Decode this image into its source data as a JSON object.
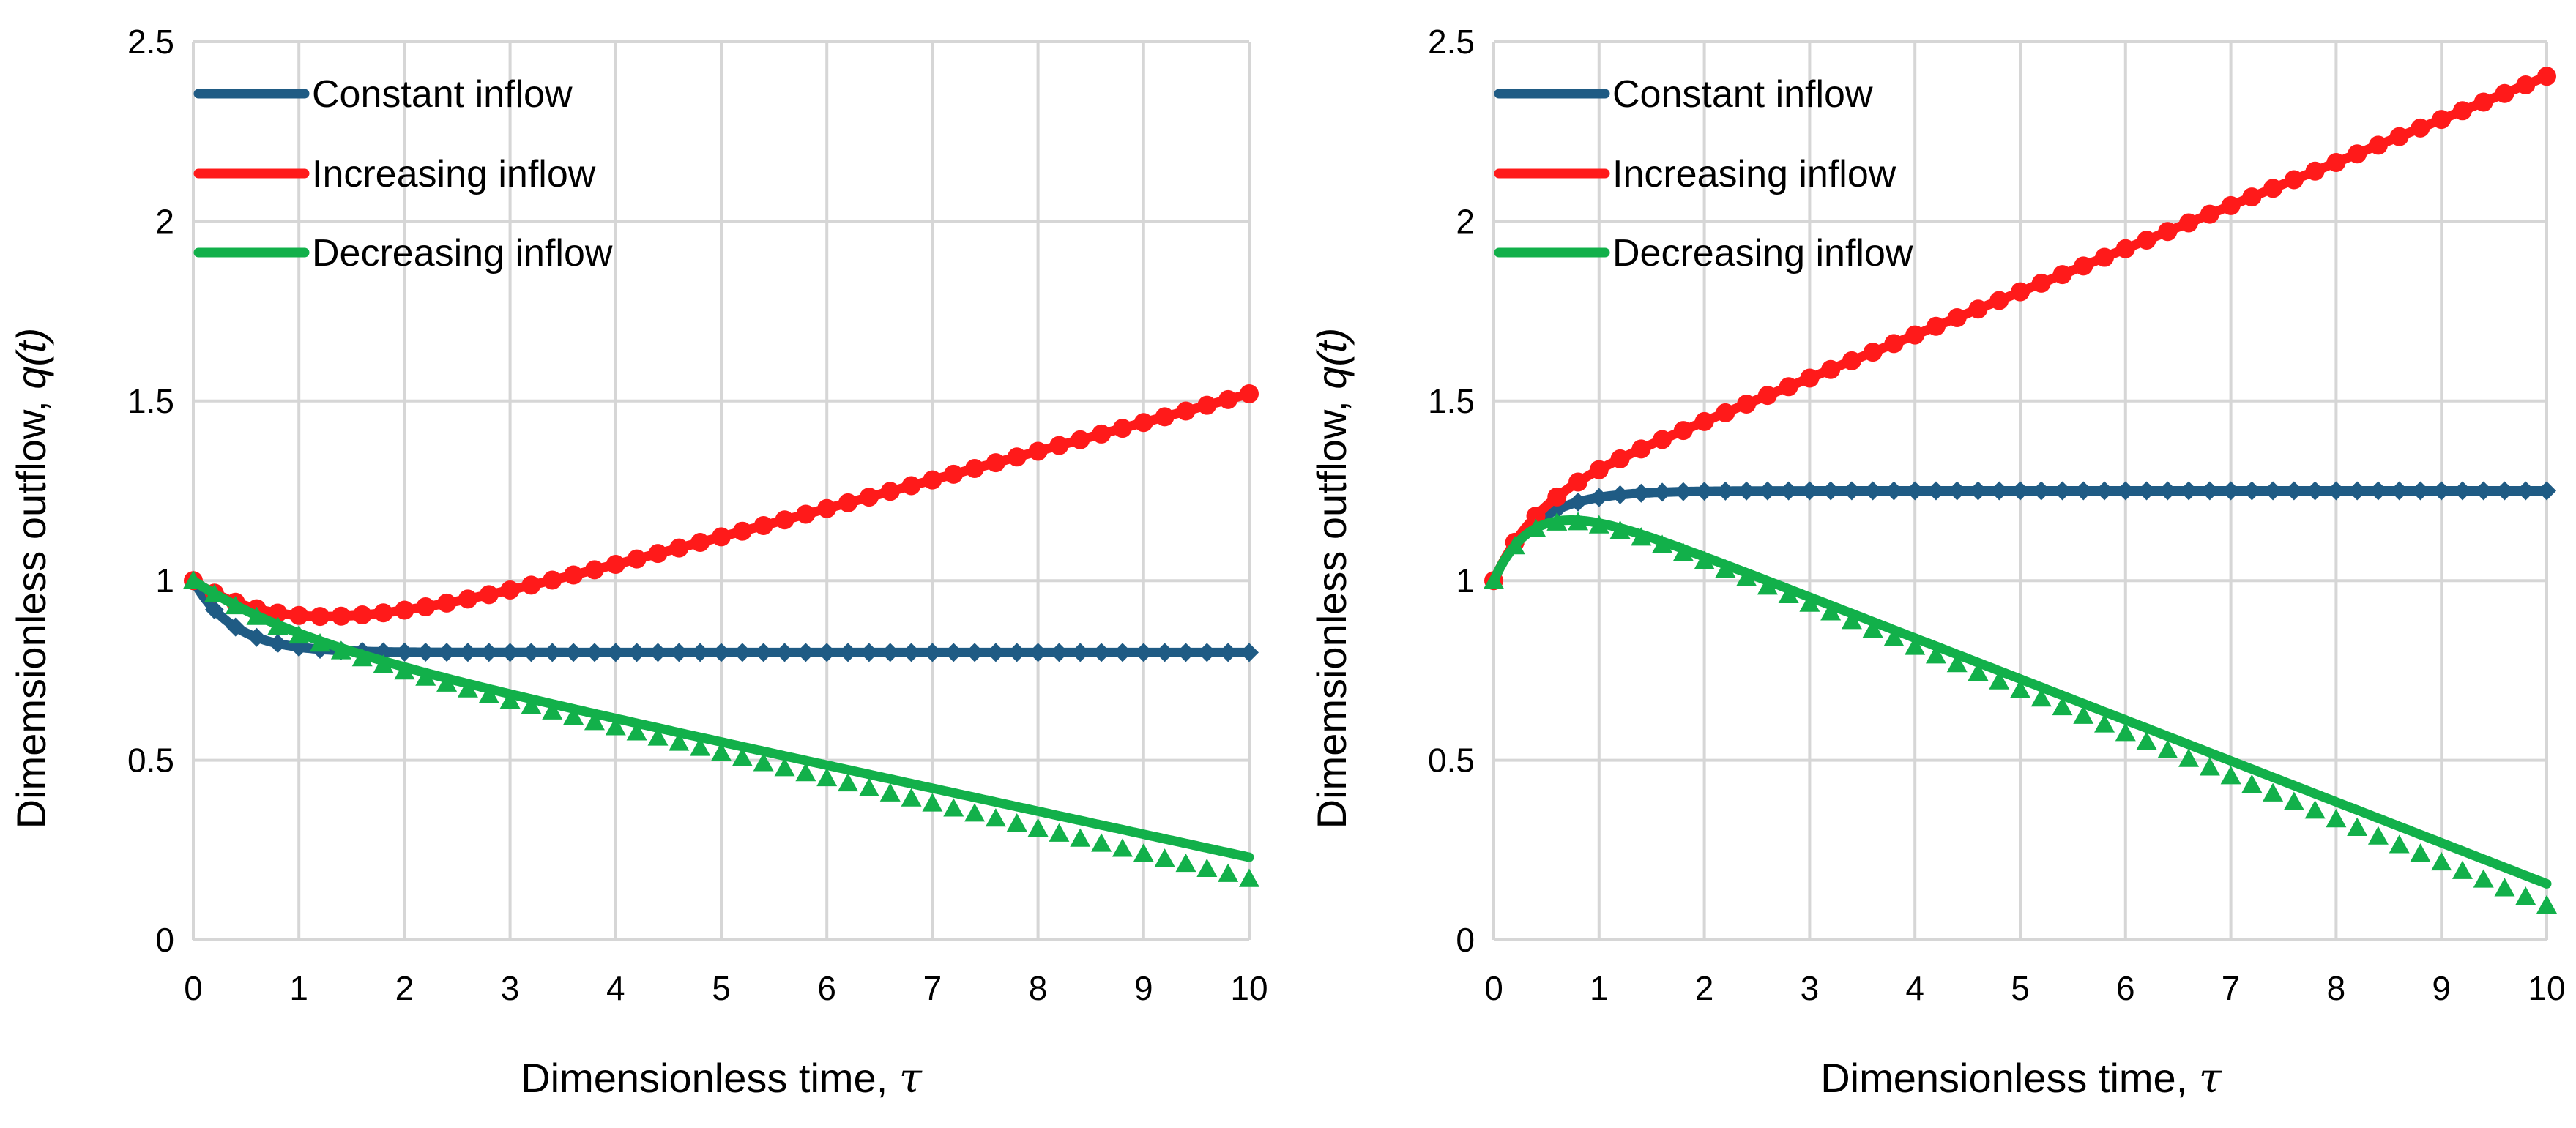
{
  "figure": {
    "panel_count": 2
  },
  "chart_data": [
    {
      "type": "line",
      "panel": "left",
      "title": "",
      "xlabel": "Dimensionless time, ",
      "xlabel_symbol": "τ",
      "ylabel": "Dimemsionless outflow, ",
      "ylabel_symbol": "q(t)",
      "xlim": [
        0,
        10
      ],
      "ylim": [
        0,
        2.5
      ],
      "xticks": [
        0,
        1,
        2,
        3,
        4,
        5,
        6,
        7,
        8,
        9,
        10
      ],
      "yticks": [
        0,
        0.5,
        1,
        1.5,
        2,
        2.5
      ],
      "ytick_labels": [
        "0",
        "0.5",
        "1",
        "1.5",
        "2",
        "2.5"
      ],
      "grid": true,
      "legend_position": "top-left",
      "marker_spacing": 0.2,
      "series": [
        {
          "name": "Constant inflow",
          "color": "#1f5b84",
          "marker": "diamond",
          "model": "constant",
          "params": {
            "q0": 1.0,
            "qinf": 0.8,
            "k": 2.6
          }
        },
        {
          "name": "Increasing inflow",
          "color": "#ff1a1a",
          "marker": "circle",
          "model": "ramp",
          "params": {
            "q0": 1.0,
            "a": 0.8,
            "b": 0.08,
            "k": 1.0,
            "line_shift": 0
          }
        },
        {
          "name": "Decreasing inflow",
          "color": "#12b04a",
          "marker": "triangle",
          "model": "ramp",
          "params": {
            "q0": 1.0,
            "a": 0.8,
            "b": -0.07,
            "k": 1.0,
            "line_shift": 0.06
          }
        }
      ]
    },
    {
      "type": "line",
      "panel": "right",
      "title": "",
      "xlabel": "Dimensionless time, ",
      "xlabel_symbol": "τ",
      "ylabel": "Dimemsionless outflow, ",
      "ylabel_symbol": "q(t)",
      "xlim": [
        0,
        10
      ],
      "ylim": [
        0,
        2.5
      ],
      "xticks": [
        0,
        1,
        2,
        3,
        4,
        5,
        6,
        7,
        8,
        9,
        10
      ],
      "yticks": [
        0,
        0.5,
        1,
        1.5,
        2,
        2.5
      ],
      "ytick_labels": [
        "0",
        "0.5",
        "1",
        "1.5",
        "2",
        "2.5"
      ],
      "grid": true,
      "legend_position": "top-left",
      "marker_spacing": 0.2,
      "series": [
        {
          "name": "Constant inflow",
          "color": "#1f5b84",
          "marker": "diamond",
          "model": "constant",
          "params": {
            "q0": 1.0,
            "qinf": 1.25,
            "k": 2.6
          }
        },
        {
          "name": "Increasing inflow",
          "color": "#ff1a1a",
          "marker": "circle",
          "model": "ramp",
          "params": {
            "q0": 1.0,
            "a": 1.25,
            "b": 0.12,
            "k": 2.6,
            "line_shift": 0
          }
        },
        {
          "name": "Decreasing inflow",
          "color": "#12b04a",
          "marker": "triangle",
          "model": "ramp",
          "params": {
            "q0": 1.0,
            "a": 1.25,
            "b": -0.12,
            "k": 2.6,
            "line_shift": 0.06
          }
        }
      ]
    }
  ]
}
